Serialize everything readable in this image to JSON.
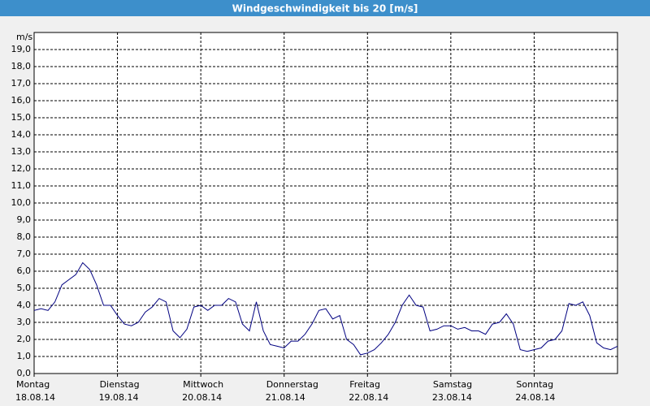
{
  "chart_data": {
    "type": "line",
    "title": "Windgeschwindigkeit bis 20 [m/s]",
    "y_unit": "m/s",
    "categories": [
      "Montag",
      null,
      null,
      null,
      null,
      null,
      null,
      null,
      null,
      null,
      null,
      null,
      "Dienstag",
      null,
      null,
      null,
      null,
      null,
      null,
      null,
      null,
      null,
      null,
      null,
      "Mittwoch",
      null,
      null,
      null,
      null,
      null,
      null,
      null,
      null,
      null,
      null,
      null,
      "Donnerstag",
      null,
      null,
      null,
      null,
      null,
      null,
      null,
      null,
      null,
      null,
      null,
      "Freitag",
      null,
      null,
      null,
      null,
      null,
      null,
      null,
      null,
      null,
      null,
      null,
      "Samstag",
      null,
      null,
      null,
      null,
      null,
      null,
      null,
      null,
      null,
      null,
      null,
      "Sonntag",
      null,
      null,
      null,
      null,
      null,
      null,
      null,
      null,
      null,
      null,
      null,
      null
    ],
    "category_dates": [
      "18.08.14",
      null,
      null,
      null,
      null,
      null,
      null,
      null,
      null,
      null,
      null,
      null,
      "19.08.14",
      null,
      null,
      null,
      null,
      null,
      null,
      null,
      null,
      null,
      null,
      null,
      "20.08.14",
      null,
      null,
      null,
      null,
      null,
      null,
      null,
      null,
      null,
      null,
      null,
      "21.08.14",
      null,
      null,
      null,
      null,
      null,
      null,
      null,
      null,
      null,
      null,
      null,
      "22.08.14",
      null,
      null,
      null,
      null,
      null,
      null,
      null,
      null,
      null,
      null,
      null,
      "23.08.14",
      null,
      null,
      null,
      null,
      null,
      null,
      null,
      null,
      null,
      null,
      null,
      "24.08.14",
      null,
      null,
      null,
      null,
      null,
      null,
      null,
      null,
      null,
      null,
      null,
      null
    ],
    "series": [
      {
        "color": "#000080",
        "values": [
          3.7,
          3.8,
          3.7,
          4.2,
          5.2,
          5.5,
          5.8,
          6.5,
          6.1,
          5.2,
          4.0,
          4.0,
          3.4,
          2.9,
          2.8,
          3.0,
          3.6,
          3.9,
          4.4,
          4.2,
          2.5,
          2.1,
          2.6,
          3.9,
          4.0,
          3.7,
          4.0,
          4.0,
          4.4,
          4.2,
          2.9,
          2.5,
          4.2,
          2.5,
          1.7,
          1.6,
          1.5,
          1.9,
          1.9,
          2.3,
          2.9,
          3.7,
          3.8,
          3.2,
          3.4,
          2.0,
          1.7,
          1.1,
          1.2,
          1.4,
          1.8,
          2.3,
          3.0,
          4.0,
          4.6,
          4.0,
          3.9,
          2.5,
          2.6,
          2.8,
          2.8,
          2.6,
          2.7,
          2.5,
          2.5,
          2.3,
          2.9,
          3.0,
          3.5,
          2.9,
          1.4,
          1.3,
          1.4,
          1.5,
          1.9,
          2.0,
          2.5,
          4.1,
          4.0,
          4.2,
          3.4,
          1.8,
          1.5,
          1.4,
          1.6
        ]
      }
    ],
    "ylim": [
      0,
      20
    ],
    "yticks": [
      {
        "value": 0,
        "label": "0,0"
      },
      {
        "value": 1,
        "label": "1,0"
      },
      {
        "value": 2,
        "label": "2,0"
      },
      {
        "value": 3,
        "label": "3,0"
      },
      {
        "value": 4,
        "label": "4,0"
      },
      {
        "value": 5,
        "label": "5,0"
      },
      {
        "value": 6,
        "label": "6,0"
      },
      {
        "value": 7,
        "label": "7,0"
      },
      {
        "value": 8,
        "label": "8,0"
      },
      {
        "value": 9,
        "label": "9,0"
      },
      {
        "value": 10,
        "label": "10,0"
      },
      {
        "value": 11,
        "label": "11,0"
      },
      {
        "value": 12,
        "label": "12,0"
      },
      {
        "value": 13,
        "label": "13,0"
      },
      {
        "value": 14,
        "label": "14,0"
      },
      {
        "value": 15,
        "label": "15,0"
      },
      {
        "value": 16,
        "label": "16,0"
      },
      {
        "value": 17,
        "label": "17,0"
      },
      {
        "value": 18,
        "label": "18,0"
      },
      {
        "value": 19,
        "label": "19,0"
      }
    ],
    "grid": true
  }
}
